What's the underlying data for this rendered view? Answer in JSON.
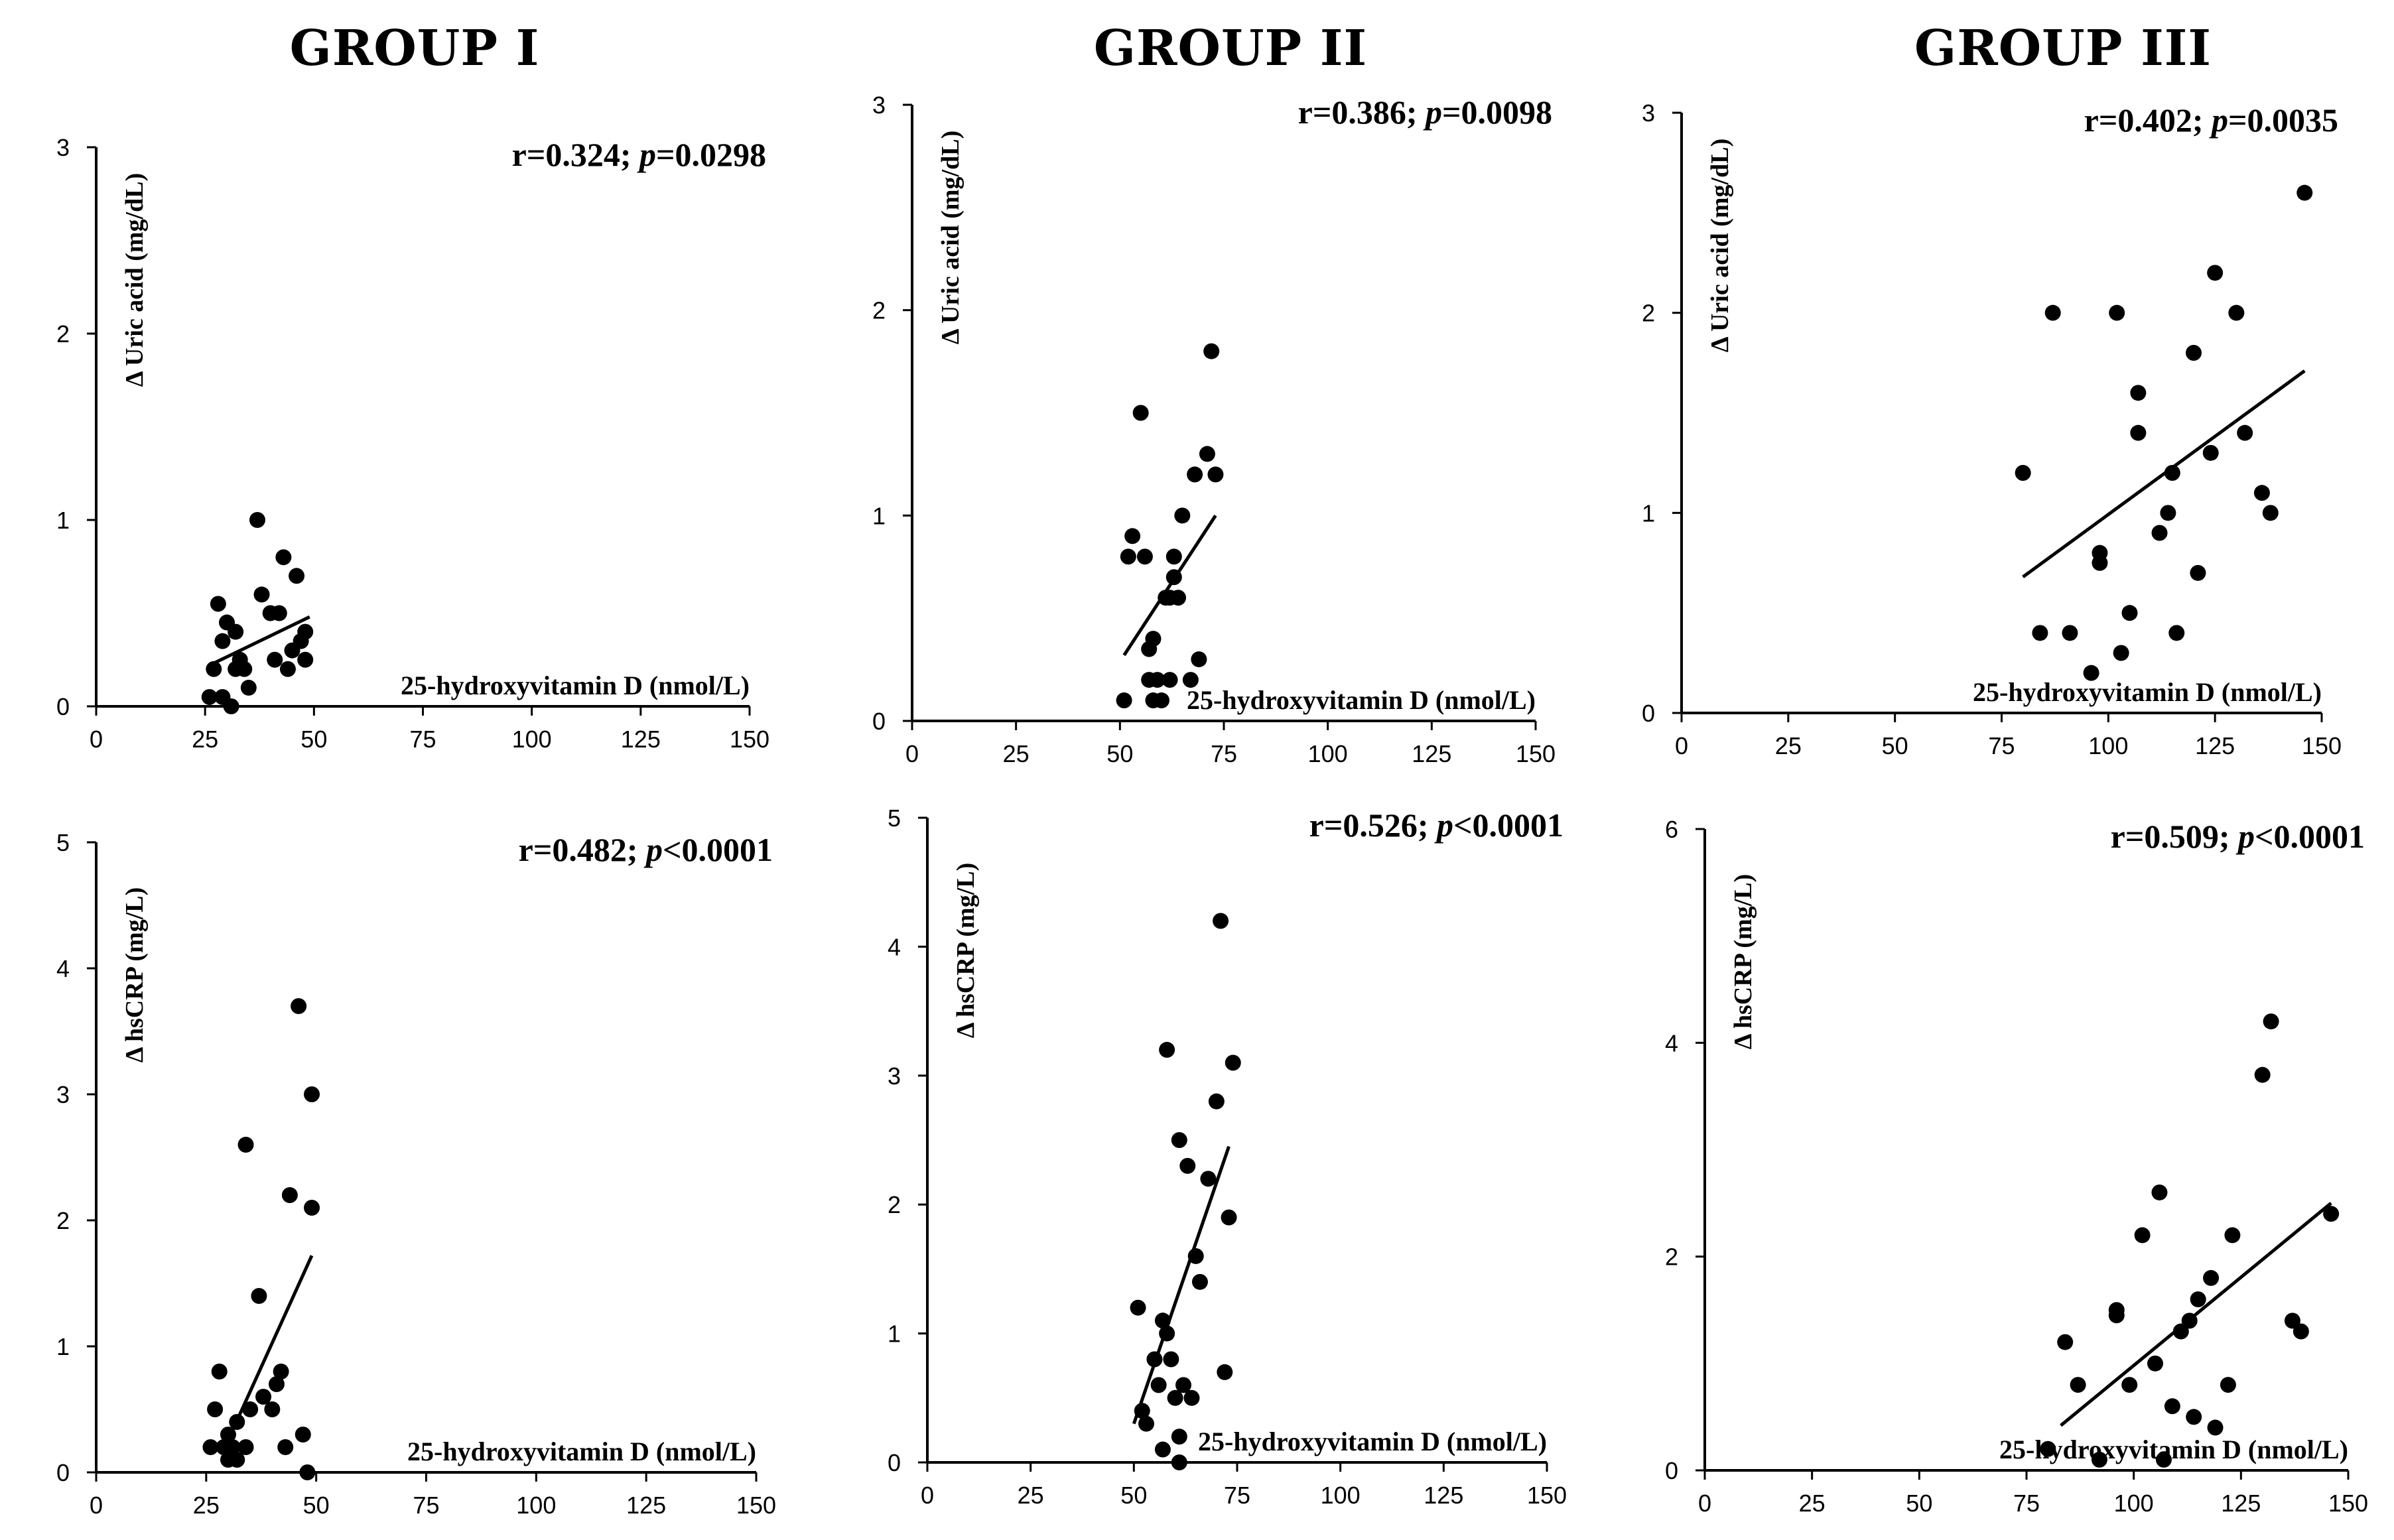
{
  "group_titles": [
    "GROUP I",
    "GROUP II",
    "GROUP III"
  ],
  "colors": {
    "point": "#000000",
    "axis": "#000000",
    "background": "#ffffff"
  },
  "chart_data": [
    {
      "type": "scatter",
      "group": "GROUP I",
      "ylabel": "Δ  Uric acid (mg/dL)",
      "xlabel": "25-hydroxyvitamin D (nmol/L)",
      "stat_r": "r=0.324; ",
      "stat_p_symbol": "p",
      "stat_p_value": "=0.0298",
      "xlim": [
        0,
        150
      ],
      "ylim": [
        0,
        3
      ],
      "x_ticks": [
        0,
        25,
        50,
        75,
        100,
        125,
        150
      ],
      "y_ticks": [
        0,
        1,
        2,
        3
      ],
      "trend": [
        [
          26,
          0.22
        ],
        [
          49,
          0.48
        ]
      ],
      "points": [
        [
          26,
          0.05
        ],
        [
          27,
          0.2
        ],
        [
          28,
          0.55
        ],
        [
          29,
          0.05
        ],
        [
          29,
          0.35
        ],
        [
          30,
          0.45
        ],
        [
          31,
          0.0
        ],
        [
          32,
          0.2
        ],
        [
          32,
          0.4
        ],
        [
          33,
          0.25
        ],
        [
          34,
          0.2
        ],
        [
          35,
          0.1
        ],
        [
          37,
          1.0
        ],
        [
          38,
          0.6
        ],
        [
          40,
          0.5
        ],
        [
          41,
          0.25
        ],
        [
          42,
          0.5
        ],
        [
          43,
          0.8
        ],
        [
          44,
          0.2
        ],
        [
          45,
          0.3
        ],
        [
          46,
          0.7
        ],
        [
          47,
          0.35
        ],
        [
          48,
          0.4
        ],
        [
          48,
          0.25
        ]
      ]
    },
    {
      "type": "scatter",
      "group": "GROUP II",
      "ylabel": "Δ  Uric acid (mg/dL)",
      "xlabel": "25-hydroxyvitamin D (nmol/L)",
      "stat_r": "r=0.386; ",
      "stat_p_symbol": "p",
      "stat_p_value": "=0.0098",
      "xlim": [
        0,
        150
      ],
      "ylim": [
        0,
        3
      ],
      "x_ticks": [
        0,
        25,
        50,
        75,
        100,
        125,
        150
      ],
      "y_ticks": [
        0,
        1,
        2,
        3
      ],
      "trend": [
        [
          51,
          0.32
        ],
        [
          73,
          1.0
        ]
      ],
      "points": [
        [
          51,
          0.1
        ],
        [
          52,
          0.8
        ],
        [
          53,
          0.9
        ],
        [
          55,
          1.5
        ],
        [
          56,
          0.8
        ],
        [
          57,
          0.35
        ],
        [
          57,
          0.2
        ],
        [
          58,
          0.4
        ],
        [
          58,
          0.1
        ],
        [
          59,
          0.2
        ],
        [
          60,
          0.1
        ],
        [
          61,
          0.6
        ],
        [
          62,
          0.2
        ],
        [
          62,
          0.6
        ],
        [
          63,
          0.8
        ],
        [
          63,
          0.7
        ],
        [
          64,
          0.6
        ],
        [
          65,
          1.0
        ],
        [
          67,
          0.2
        ],
        [
          68,
          1.2
        ],
        [
          69,
          0.3
        ],
        [
          71,
          1.3
        ],
        [
          72,
          1.8
        ],
        [
          73,
          1.2
        ]
      ]
    },
    {
      "type": "scatter",
      "group": "GROUP III",
      "ylabel": "Δ  Uric acid (mg/dL)",
      "xlabel": "25-hydroxyvitamin D (nmol/L)",
      "stat_r": "r=0.402; ",
      "stat_p_symbol": "p",
      "stat_p_value": "=0.0035",
      "xlim": [
        0,
        150
      ],
      "ylim": [
        0,
        3
      ],
      "x_ticks": [
        0,
        25,
        50,
        75,
        100,
        125,
        150
      ],
      "y_ticks": [
        0,
        1,
        2,
        3
      ],
      "trend": [
        [
          80,
          0.68
        ],
        [
          146,
          1.71
        ]
      ],
      "points": [
        [
          80,
          1.2
        ],
        [
          84,
          0.4
        ],
        [
          87,
          2.0
        ],
        [
          91,
          0.4
        ],
        [
          96,
          0.2
        ],
        [
          98,
          0.8
        ],
        [
          98,
          0.75
        ],
        [
          102,
          2.0
        ],
        [
          103,
          0.3
        ],
        [
          105,
          0.5
        ],
        [
          107,
          1.6
        ],
        [
          107,
          1.4
        ],
        [
          112,
          0.9
        ],
        [
          114,
          1.0
        ],
        [
          115,
          1.2
        ],
        [
          116,
          0.4
        ],
        [
          120,
          1.8
        ],
        [
          121,
          0.7
        ],
        [
          124,
          1.3
        ],
        [
          125,
          2.2
        ],
        [
          130,
          2.0
        ],
        [
          132,
          1.4
        ],
        [
          136,
          1.1
        ],
        [
          138,
          1.0
        ],
        [
          146,
          2.6
        ]
      ]
    },
    {
      "type": "scatter",
      "group": "GROUP I",
      "ylabel": "Δ  hsCRP (mg/L)",
      "xlabel": "25-hydroxyvitamin D (nmol/L)",
      "stat_r": "r=0.482; ",
      "stat_p_symbol": "p",
      "stat_p_value": "<0.0001",
      "xlim": [
        0,
        150
      ],
      "ylim": [
        0,
        5
      ],
      "x_ticks": [
        0,
        25,
        50,
        75,
        100,
        125,
        150
      ],
      "y_ticks": [
        0,
        1,
        2,
        3,
        4,
        5
      ],
      "trend": [
        [
          29,
          0.18
        ],
        [
          49,
          1.72
        ]
      ],
      "points": [
        [
          26,
          0.2
        ],
        [
          27,
          0.5
        ],
        [
          28,
          0.8
        ],
        [
          29,
          0.2
        ],
        [
          30,
          0.1
        ],
        [
          30,
          0.3
        ],
        [
          31,
          0.2
        ],
        [
          32,
          0.1
        ],
        [
          32,
          0.4
        ],
        [
          34,
          0.2
        ],
        [
          34,
          2.6
        ],
        [
          35,
          0.5
        ],
        [
          37,
          1.4
        ],
        [
          38,
          0.6
        ],
        [
          40,
          0.5
        ],
        [
          41,
          0.7
        ],
        [
          42,
          0.8
        ],
        [
          43,
          0.2
        ],
        [
          44,
          2.2
        ],
        [
          46,
          3.7
        ],
        [
          47,
          0.3
        ],
        [
          48,
          0.0
        ],
        [
          49,
          3.0
        ],
        [
          49,
          2.1
        ]
      ]
    },
    {
      "type": "scatter",
      "group": "GROUP II",
      "ylabel": "Δ  hsCRP (mg/L)",
      "xlabel": "25-hydroxyvitamin D (nmol/L)",
      "stat_r": "r=0.526; ",
      "stat_p_symbol": "p",
      "stat_p_value": "<0.0001",
      "xlim": [
        0,
        150
      ],
      "ylim": [
        0,
        5
      ],
      "x_ticks": [
        0,
        25,
        50,
        75,
        100,
        125,
        150
      ],
      "y_ticks": [
        0,
        1,
        2,
        3,
        4,
        5
      ],
      "trend": [
        [
          50,
          0.3
        ],
        [
          73,
          2.45
        ]
      ],
      "points": [
        [
          51,
          1.2
        ],
        [
          52,
          0.4
        ],
        [
          53,
          0.3
        ],
        [
          55,
          0.8
        ],
        [
          56,
          0.6
        ],
        [
          57,
          1.1
        ],
        [
          57,
          0.1
        ],
        [
          58,
          1.0
        ],
        [
          58,
          3.2
        ],
        [
          59,
          0.8
        ],
        [
          60,
          0.5
        ],
        [
          61,
          0.2
        ],
        [
          61,
          2.5
        ],
        [
          61,
          0.0
        ],
        [
          62,
          0.6
        ],
        [
          63,
          2.3
        ],
        [
          64,
          0.5
        ],
        [
          65,
          1.6
        ],
        [
          66,
          1.4
        ],
        [
          68,
          2.2
        ],
        [
          70,
          2.8
        ],
        [
          71,
          4.2
        ],
        [
          72,
          0.7
        ],
        [
          73,
          1.9
        ],
        [
          74,
          3.1
        ]
      ]
    },
    {
      "type": "scatter",
      "group": "GROUP III",
      "ylabel": "Δ  hsCRP (mg/L)",
      "xlabel": "25-hydroxyvitamin D (nmol/L)",
      "stat_r": "r=0.509; ",
      "stat_p_symbol": "p",
      "stat_p_value": "<0.0001",
      "xlim": [
        0,
        150
      ],
      "ylim": [
        0,
        6
      ],
      "x_ticks": [
        0,
        25,
        50,
        75,
        100,
        125,
        150
      ],
      "y_ticks": [
        0,
        2,
        4,
        6
      ],
      "trend": [
        [
          83,
          0.42
        ],
        [
          146,
          2.5
        ]
      ],
      "points": [
        [
          80,
          0.2
        ],
        [
          84,
          1.2
        ],
        [
          87,
          0.8
        ],
        [
          92,
          0.1
        ],
        [
          96,
          1.5
        ],
        [
          96,
          1.45
        ],
        [
          99,
          0.8
        ],
        [
          102,
          2.2
        ],
        [
          105,
          1.0
        ],
        [
          106,
          2.6
        ],
        [
          107,
          0.1
        ],
        [
          109,
          0.6
        ],
        [
          111,
          1.3
        ],
        [
          113,
          1.4
        ],
        [
          114,
          0.5
        ],
        [
          115,
          1.6
        ],
        [
          118,
          1.8
        ],
        [
          119,
          0.4
        ],
        [
          122,
          0.8
        ],
        [
          123,
          2.2
        ],
        [
          130,
          3.7
        ],
        [
          132,
          4.2
        ],
        [
          137,
          1.4
        ],
        [
          139,
          1.3
        ],
        [
          146,
          2.4
        ]
      ]
    }
  ]
}
